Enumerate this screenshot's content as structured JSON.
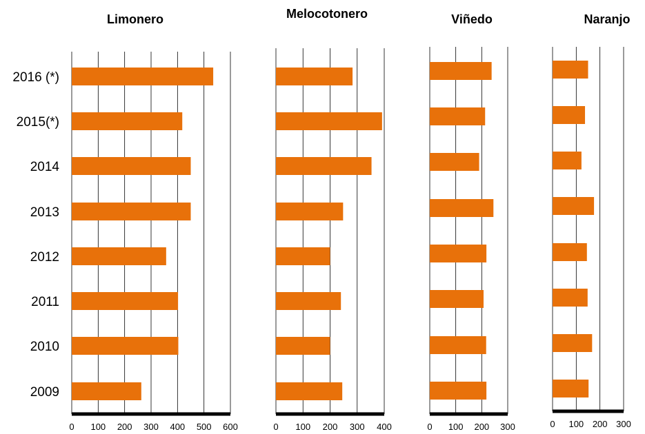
{
  "chart_data": {
    "type": "bar",
    "orientation": "horizontal",
    "grid": true,
    "categories": [
      "2016 (*)",
      "2015(*)",
      "2014",
      "2013",
      "2012",
      "2011",
      "2010",
      "2009"
    ],
    "panels": [
      {
        "title": "Limonero",
        "values": [
          535,
          418,
          450,
          450,
          357,
          402,
          403,
          263
        ],
        "xlim": [
          0,
          600
        ],
        "ticks": [
          0,
          100,
          200,
          300,
          400,
          500,
          600
        ]
      },
      {
        "title": "Melocotonero",
        "values": [
          283,
          392,
          353,
          248,
          200,
          240,
          200,
          245
        ],
        "xlim": [
          0,
          400
        ],
        "ticks": [
          0,
          100,
          200,
          300,
          400
        ]
      },
      {
        "title": "Viñedo",
        "values": [
          238,
          213,
          190,
          245,
          218,
          207,
          217,
          218
        ],
        "xlim": [
          0,
          300
        ],
        "ticks": [
          0,
          100,
          200,
          300
        ]
      },
      {
        "title": "Naranjo",
        "values": [
          150,
          137,
          122,
          175,
          145,
          148,
          167,
          152
        ],
        "xlim": [
          0,
          300
        ],
        "ticks": [
          0,
          100,
          200,
          300
        ]
      }
    ],
    "colors": {
      "bar": "#e8710a",
      "axis": "#000000",
      "grid": "#000000"
    }
  }
}
